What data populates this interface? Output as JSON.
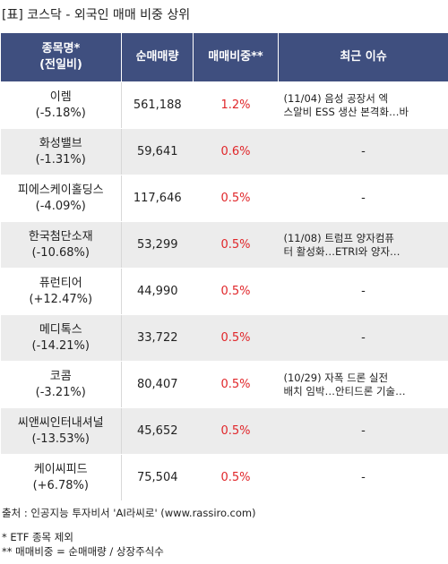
{
  "title": "[표] 코스닥 - 외국인 매매 비중 상위",
  "columns": {
    "name_line1": "종목명*",
    "name_line2": "(전일비)",
    "volume": "순매매량",
    "ratio": "매매비중**",
    "issue": "최근 이슈"
  },
  "rows": [
    {
      "name": "이렘",
      "change": "(-5.18%)",
      "volume": "561,188",
      "ratio": "1.2%",
      "issue1": "(11/04) 음성 공장서 엑",
      "issue2": "스알비 ESS 생산 본격화…바"
    },
    {
      "name": "화성밸브",
      "change": "(-1.31%)",
      "volume": "59,641",
      "ratio": "0.6%",
      "issue1": "-",
      "issue2": ""
    },
    {
      "name": "피에스케이홀딩스",
      "change": "(-4.09%)",
      "volume": "117,646",
      "ratio": "0.5%",
      "issue1": "-",
      "issue2": ""
    },
    {
      "name": "한국첨단소재",
      "change": "(-10.68%)",
      "volume": "53,299",
      "ratio": "0.5%",
      "issue1": "(11/08) 트럼프 양자컴퓨",
      "issue2": "터 활성화…ETRI와 양자…"
    },
    {
      "name": "퓨런티어",
      "change": "(+12.47%)",
      "volume": "44,990",
      "ratio": "0.5%",
      "issue1": "-",
      "issue2": ""
    },
    {
      "name": "메디톡스",
      "change": "(-14.21%)",
      "volume": "33,722",
      "ratio": "0.5%",
      "issue1": "-",
      "issue2": ""
    },
    {
      "name": "코콤",
      "change": "(-3.21%)",
      "volume": "80,407",
      "ratio": "0.5%",
      "issue1": "(10/29) 자폭 드론 실전",
      "issue2": "배치 임박…안티드론 기술…"
    },
    {
      "name": "씨앤씨인터내셔널",
      "change": "(-13.53%)",
      "volume": "45,652",
      "ratio": "0.5%",
      "issue1": "-",
      "issue2": ""
    },
    {
      "name": "케이씨피드",
      "change": "(+6.78%)",
      "volume": "75,504",
      "ratio": "0.5%",
      "issue1": "-",
      "issue2": ""
    }
  ],
  "footer": {
    "source": "출처 : 인공지능 투자비서 'AI라씨로' (www.rassiro.com)",
    "note1": "* ETF 종목 제외",
    "note2": "** 매매비중 = 순매매량 / 상장주식수"
  }
}
